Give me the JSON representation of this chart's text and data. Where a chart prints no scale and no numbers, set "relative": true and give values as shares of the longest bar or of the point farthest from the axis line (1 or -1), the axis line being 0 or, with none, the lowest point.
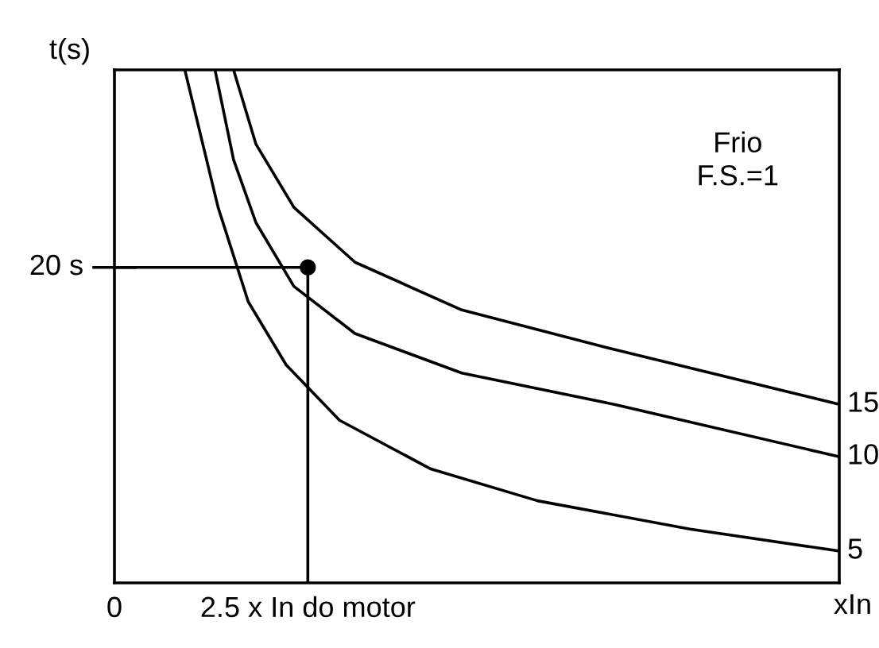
{
  "chart_data": {
    "type": "line",
    "relative": true,
    "xlabel": "xIn",
    "ylabel": "t(s)",
    "xlim": [
      0,
      9.37
    ],
    "xticks": [
      0,
      {
        "value": 2.5,
        "label": "2.5 x In do motor"
      }
    ],
    "annotations": [
      "20 s",
      "Frio\nF.S.=1"
    ],
    "grid": false,
    "legend": false,
    "marker": "none",
    "line_style": "solid",
    "series": [
      {
        "name": "15",
        "color": "#000000",
        "x": [
          1.54,
          1.83,
          2.32,
          3.11,
          4.49,
          6.46,
          9.37
        ],
        "values": [
          1,
          0.855,
          0.732,
          0.625,
          0.532,
          0.455,
          0.348
        ]
      },
      {
        "name": "10",
        "color": "#000000",
        "x": [
          1.3,
          1.54,
          1.83,
          2.32,
          3.11,
          4.49,
          6.46,
          9.37
        ],
        "values": [
          1,
          0.825,
          0.702,
          0.578,
          0.486,
          0.409,
          0.348,
          0.246
        ]
      },
      {
        "name": "5",
        "color": "#000000",
        "x": [
          0.91,
          1.34,
          1.73,
          2.22,
          2.91,
          4.09,
          5.47,
          7.44,
          9.37
        ],
        "values": [
          1,
          0.732,
          0.548,
          0.425,
          0.317,
          0.222,
          0.16,
          0.105,
          0.062
        ]
      },
      {
        "color": "#000000",
        "x": [
          0,
          2.5,
          2.5
        ],
        "values": [
          0.615,
          0.615,
          0
        ]
      },
      {
        "type": "scatter",
        "marker": "circle",
        "color": "#000000",
        "x": [
          2.5
        ],
        "values": [
          0.615
        ]
      }
    ]
  }
}
